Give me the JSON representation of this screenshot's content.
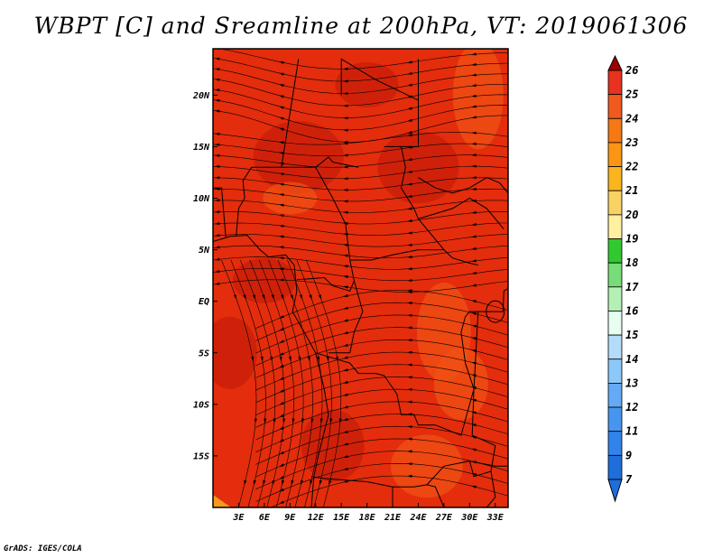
{
  "title": "WBPT [C] and Sreamline at 200hPa, VT: 2019061306",
  "credit": "GrADS: IGES/COLA",
  "map": {
    "lon_range": [
      0,
      34.5
    ],
    "lat_range": [
      -20,
      24.5
    ],
    "lon_ticks": [
      {
        "value": 3,
        "label": "3E"
      },
      {
        "value": 6,
        "label": "6E"
      },
      {
        "value": 9,
        "label": "9E"
      },
      {
        "value": 12,
        "label": "12E"
      },
      {
        "value": 15,
        "label": "15E"
      },
      {
        "value": 18,
        "label": "18E"
      },
      {
        "value": 21,
        "label": "21E"
      },
      {
        "value": 24,
        "label": "24E"
      },
      {
        "value": 27,
        "label": "27E"
      },
      {
        "value": 30,
        "label": "30E"
      },
      {
        "value": 33,
        "label": "33E"
      }
    ],
    "lat_ticks": [
      {
        "value": 20,
        "label": "20N"
      },
      {
        "value": 15,
        "label": "15N"
      },
      {
        "value": 10,
        "label": "10N"
      },
      {
        "value": 5,
        "label": "5N"
      },
      {
        "value": 0,
        "label": "EQ"
      },
      {
        "value": -5,
        "label": "5S"
      },
      {
        "value": -10,
        "label": "10S"
      },
      {
        "value": -15,
        "label": "15S"
      }
    ],
    "dominant_value_range_C": [
      23,
      25
    ],
    "field_colors": {
      "c23": "#f05014",
      "c24": "#e32d0c",
      "c25": "#c81e0a"
    }
  },
  "colorbar": {
    "min_arrow_color": "#1e6edc",
    "max_arrow_color": "#a00000",
    "levels": [
      {
        "label": "26",
        "color": "#c80f0f"
      },
      {
        "label": "25",
        "color": "#e6321e"
      },
      {
        "label": "24",
        "color": "#f05a1e"
      },
      {
        "label": "23",
        "color": "#f57814"
      },
      {
        "label": "22",
        "color": "#fa9614"
      },
      {
        "label": "21",
        "color": "#fab41e"
      },
      {
        "label": "20",
        "color": "#fad264"
      },
      {
        "label": "19",
        "color": "#fff0a0"
      },
      {
        "label": "18",
        "color": "#32c832"
      },
      {
        "label": "17",
        "color": "#78dc78"
      },
      {
        "label": "16",
        "color": "#b4f0b4"
      },
      {
        "label": "15",
        "color": "#e6fff0"
      },
      {
        "label": "14",
        "color": "#b4dcfa"
      },
      {
        "label": "13",
        "color": "#8cc8fa"
      },
      {
        "label": "12",
        "color": "#64aaf5"
      },
      {
        "label": "11",
        "color": "#4696f0"
      },
      {
        "label": "9",
        "color": "#3282eb"
      },
      {
        "label": "7",
        "color": "#1e6edc"
      }
    ]
  }
}
